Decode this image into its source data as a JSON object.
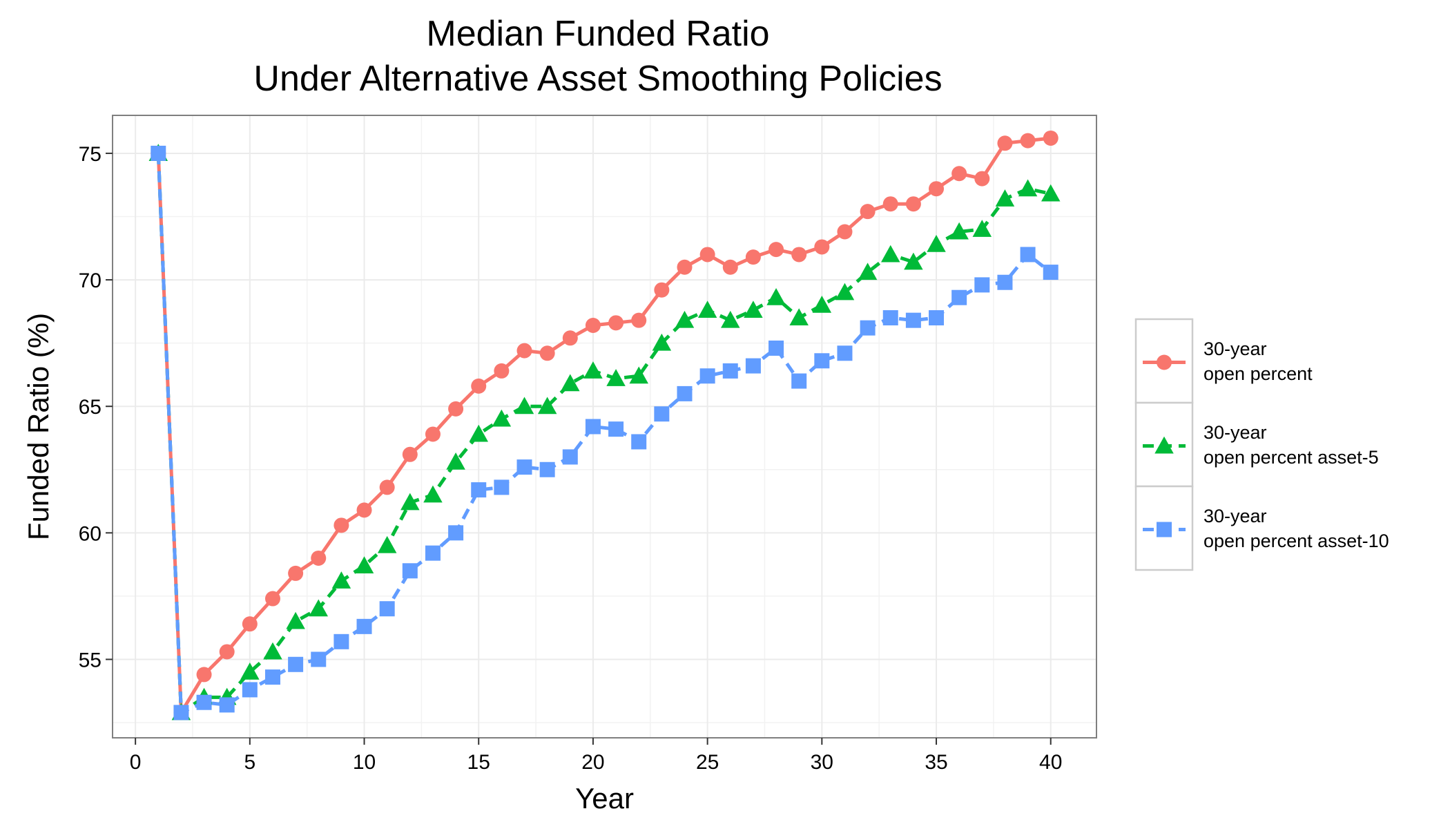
{
  "chart_data": {
    "type": "line",
    "title": [
      "Median Funded Ratio",
      "Under Alternative Asset Smoothing Policies"
    ],
    "xlabel": "Year",
    "ylabel": "Funded Ratio (%)",
    "xlim": [
      -1,
      42
    ],
    "ylim": [
      51.9,
      76.5
    ],
    "xticks": [
      0,
      5,
      10,
      15,
      20,
      25,
      30,
      35,
      40
    ],
    "yticks": [
      55,
      60,
      65,
      70,
      75
    ],
    "grid": true,
    "legend_position": "right",
    "x": [
      1,
      2,
      3,
      4,
      5,
      6,
      7,
      8,
      9,
      10,
      11,
      12,
      13,
      14,
      15,
      16,
      17,
      18,
      19,
      20,
      21,
      22,
      23,
      24,
      25,
      26,
      27,
      28,
      29,
      30,
      31,
      32,
      33,
      34,
      35,
      36,
      37,
      38,
      39,
      40
    ],
    "series": [
      {
        "name": [
          "30-year",
          "open percent"
        ],
        "color": "#F8766D",
        "linestyle": "solid",
        "marker": "circle",
        "values": [
          75.0,
          52.9,
          54.4,
          55.3,
          56.4,
          57.4,
          58.4,
          59.0,
          60.3,
          60.9,
          61.8,
          63.1,
          63.9,
          64.9,
          65.8,
          66.4,
          67.2,
          67.1,
          67.7,
          68.2,
          68.3,
          68.4,
          69.6,
          70.5,
          71.0,
          70.5,
          70.9,
          71.2,
          71.0,
          71.3,
          71.9,
          72.7,
          73.0,
          73.0,
          73.6,
          74.2,
          74.0,
          75.4,
          75.5,
          75.6
        ]
      },
      {
        "name": [
          "30-year",
          "open percent asset-5"
        ],
        "color": "#00BA38",
        "linestyle": "dashed",
        "marker": "triangle",
        "values": [
          75.0,
          52.9,
          53.5,
          53.5,
          54.5,
          55.3,
          56.5,
          57.0,
          58.1,
          58.7,
          59.5,
          61.2,
          61.5,
          62.8,
          63.9,
          64.5,
          65.0,
          65.0,
          65.9,
          66.4,
          66.1,
          66.2,
          67.5,
          68.4,
          68.8,
          68.4,
          68.8,
          69.3,
          68.5,
          69.0,
          69.5,
          70.3,
          71.0,
          70.7,
          71.4,
          71.9,
          72.0,
          73.2,
          73.6,
          73.4
        ]
      },
      {
        "name": [
          "30-year",
          "open percent asset-10"
        ],
        "color": "#619CFF",
        "linestyle": "dashed",
        "marker": "square",
        "values": [
          75.0,
          52.9,
          53.3,
          53.2,
          53.8,
          54.3,
          54.8,
          55.0,
          55.7,
          56.3,
          57.0,
          58.5,
          59.2,
          60.0,
          61.7,
          61.8,
          62.6,
          62.5,
          63.0,
          64.2,
          64.1,
          63.6,
          64.7,
          65.5,
          66.2,
          66.4,
          66.6,
          67.3,
          66.0,
          66.8,
          67.1,
          68.1,
          68.5,
          68.4,
          68.5,
          69.3,
          69.8,
          69.9,
          71.0,
          70.3
        ]
      }
    ]
  }
}
